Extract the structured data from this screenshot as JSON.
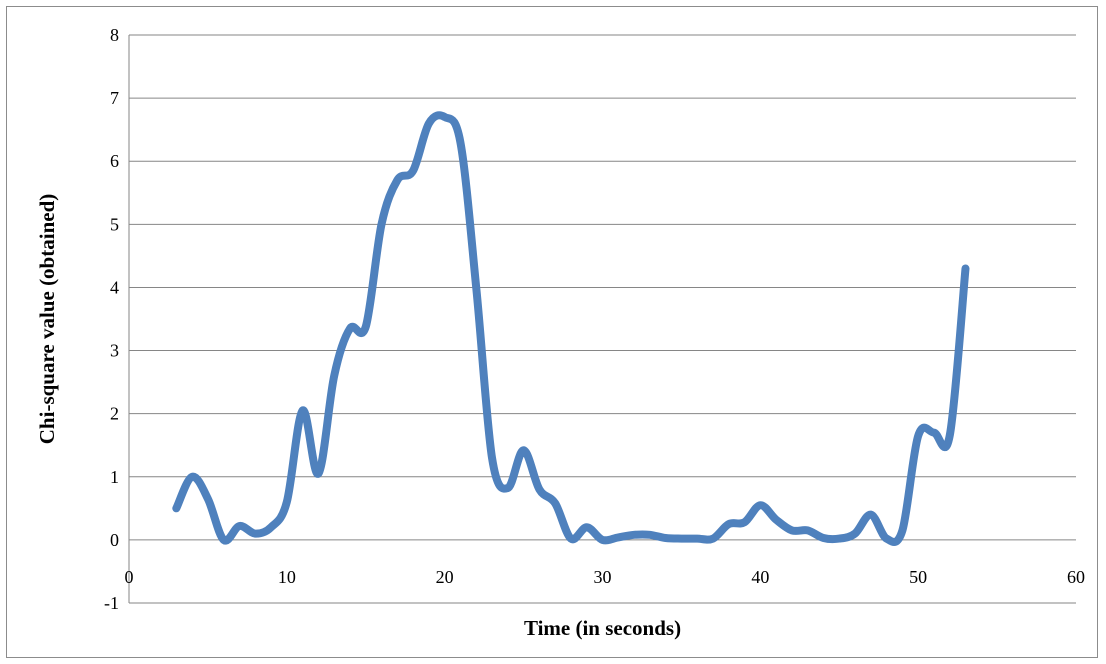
{
  "chart_data": {
    "type": "line",
    "title": "",
    "xlabel": "Time (in seconds)",
    "ylabel": "Chi-square value (obtained)",
    "xlim": [
      0,
      60
    ],
    "ylim": [
      -1,
      8
    ],
    "xticks": [
      "0",
      "10",
      "20",
      "30",
      "40",
      "50",
      "60"
    ],
    "yticks": [
      "-1",
      "0",
      "1",
      "2",
      "3",
      "4",
      "5",
      "6",
      "7",
      "8"
    ],
    "grid": "horizontal",
    "legend": "none",
    "series": [
      {
        "color": "#4f81bd",
        "x": [
          3,
          4,
          5,
          6,
          7,
          8,
          9,
          10,
          11,
          12,
          13,
          14,
          15,
          16,
          17,
          18,
          19,
          20,
          21,
          22,
          23,
          24,
          25,
          26,
          27,
          28,
          29,
          30,
          31,
          32,
          33,
          34,
          35,
          36,
          37,
          38,
          39,
          40,
          41,
          42,
          43,
          44,
          45,
          46,
          47,
          48,
          49,
          50,
          51,
          52,
          53
        ],
        "y": [
          0.5,
          1.0,
          0.65,
          0.0,
          0.22,
          0.1,
          0.2,
          0.6,
          2.05,
          1.05,
          2.6,
          3.35,
          3.38,
          5.0,
          5.7,
          5.85,
          6.6,
          6.7,
          6.3,
          4.0,
          1.3,
          0.82,
          1.42,
          0.8,
          0.58,
          0.02,
          0.2,
          0.0,
          0.04,
          0.08,
          0.08,
          0.03,
          0.02,
          0.02,
          0.02,
          0.25,
          0.28,
          0.55,
          0.32,
          0.15,
          0.15,
          0.03,
          0.02,
          0.1,
          0.4,
          0.02,
          0.15,
          1.65,
          1.7,
          1.65,
          4.3
        ]
      }
    ]
  }
}
